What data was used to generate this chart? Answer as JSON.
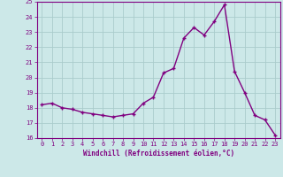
{
  "x": [
    0,
    1,
    2,
    3,
    4,
    5,
    6,
    7,
    8,
    9,
    10,
    11,
    12,
    13,
    14,
    15,
    16,
    17,
    18,
    19,
    20,
    21,
    22,
    23
  ],
  "y": [
    18.2,
    18.3,
    18.0,
    17.9,
    17.7,
    17.6,
    17.5,
    17.4,
    17.5,
    17.6,
    18.3,
    18.7,
    20.3,
    20.6,
    22.6,
    23.3,
    22.8,
    23.7,
    24.8,
    20.4,
    19.0,
    17.5,
    17.2,
    16.2
  ],
  "line_color": "#800080",
  "marker": "+",
  "marker_color": "#800080",
  "bg_color": "#cce8e8",
  "grid_color": "#aacccc",
  "xlabel": "Windchill (Refroidissement éolien,°C)",
  "xlabel_color": "#800080",
  "tick_color": "#800080",
  "ylim": [
    16,
    25
  ],
  "xlim": [
    -0.5,
    23.5
  ],
  "yticks": [
    16,
    17,
    18,
    19,
    20,
    21,
    22,
    23,
    24,
    25
  ],
  "xticks": [
    0,
    1,
    2,
    3,
    4,
    5,
    6,
    7,
    8,
    9,
    10,
    11,
    12,
    13,
    14,
    15,
    16,
    17,
    18,
    19,
    20,
    21,
    22,
    23
  ],
  "linewidth": 1.0,
  "markersize": 3.5,
  "markeredgewidth": 1.0
}
